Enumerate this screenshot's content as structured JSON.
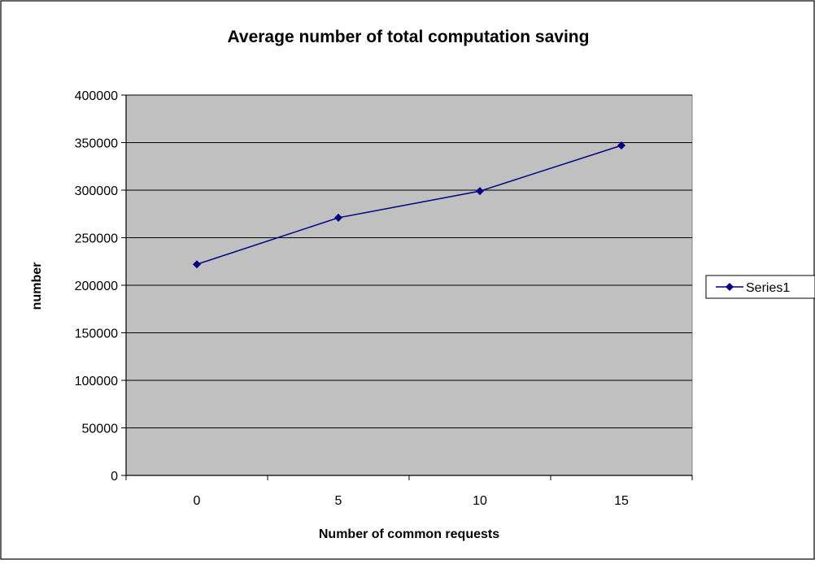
{
  "chart_data": {
    "type": "line",
    "title": "Average number of total computation saving",
    "xlabel": "Number of common requests",
    "ylabel": "number",
    "categories": [
      "0",
      "5",
      "10",
      "15"
    ],
    "ylim": [
      0,
      400000
    ],
    "yticks": [
      0,
      50000,
      100000,
      150000,
      200000,
      250000,
      300000,
      350000,
      400000
    ],
    "grid": true,
    "legend_position": "right",
    "series": [
      {
        "name": "Series1",
        "values": [
          222000,
          271000,
          299000,
          347000
        ],
        "color": "#000080",
        "marker": "diamond"
      }
    ],
    "plot_background": "#c0c0c0",
    "gridline_color": "#000000"
  }
}
